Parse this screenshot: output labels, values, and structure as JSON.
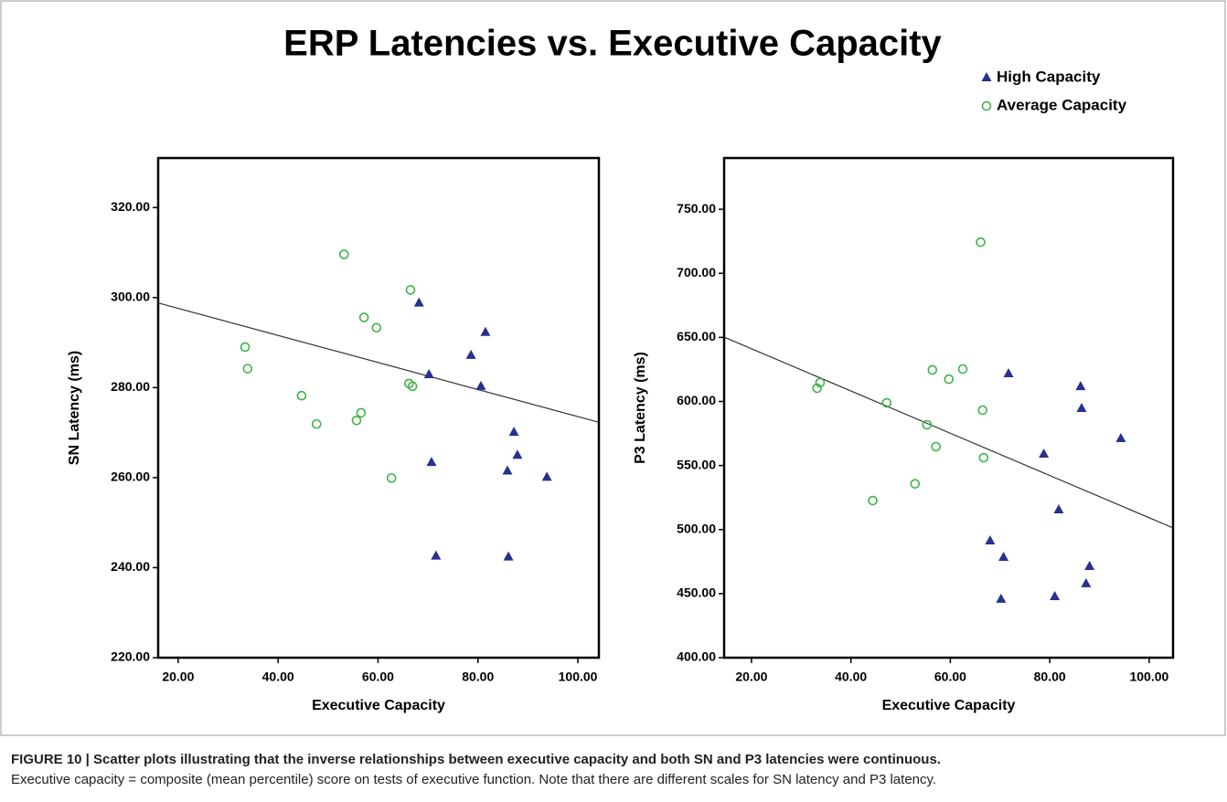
{
  "title": "ERP Latencies vs. Executive Capacity",
  "caption_title": "FIGURE 10 | Scatter plots illustrating that the inverse relationships between executive capacity and both SN and P3 latencies were continuous.",
  "caption_text": "Executive capacity = composite (mean percentile) score on tests of executive function. Note that there are different scales for SN latency and P3 latency.",
  "chart_data": [
    {
      "type": "scatter",
      "x_label": "Executive Capacity",
      "y_label": "SN Latency (ms)",
      "xlim": [
        16,
        104.2
      ],
      "ylim": [
        220,
        331
      ],
      "xticks": [
        {
          "value": 20,
          "label": "20.00"
        },
        {
          "value": 40,
          "label": "40.00"
        },
        {
          "value": 60,
          "label": "60.00"
        },
        {
          "value": 80,
          "label": "80.00"
        },
        {
          "value": 100,
          "label": "100.00"
        }
      ],
      "yticks": [
        {
          "value": 220,
          "label": "220.00"
        },
        {
          "value": 240,
          "label": "240.00"
        },
        {
          "value": 260,
          "label": "260.00"
        },
        {
          "value": 280,
          "label": "280.00"
        },
        {
          "value": 300,
          "label": "300.00"
        },
        {
          "value": 320,
          "label": "320.00"
        }
      ],
      "series": [
        {
          "name": "High Capacity",
          "color": "#27318f",
          "marker": "triangle",
          "x": [
            68.2,
            70.2,
            70.7,
            71.6,
            78.6,
            80.6,
            81.5,
            85.9,
            87.2,
            87.9,
            86.1,
            93.8
          ],
          "values": [
            298.8,
            282.9,
            263.4,
            242.6,
            287.2,
            280.3,
            292.3,
            261.5,
            270.1,
            265.0,
            242.4,
            260.1
          ]
        },
        {
          "name": "Average Capacity",
          "color": "#3db545",
          "marker": "circle",
          "x": [
            33.4,
            33.9,
            44.7,
            47.7,
            53.2,
            55.7,
            56.6,
            57.2,
            59.7,
            62.7,
            66.5,
            66.2,
            66.9
          ],
          "values": [
            289.0,
            284.2,
            278.2,
            271.9,
            309.6,
            272.7,
            274.4,
            295.6,
            293.3,
            259.9,
            301.7,
            280.9,
            280.3
          ]
        }
      ],
      "fit_line": {
        "x": [
          16,
          104.2
        ],
        "values": [
          298.8,
          272.3
        ],
        "color": "#333333"
      }
    },
    {
      "type": "scatter",
      "x_label": "Executive Capacity",
      "y_label": "P3 Latency (ms)",
      "xlim": [
        14.5,
        104.8
      ],
      "ylim": [
        400,
        790
      ],
      "xticks": [
        {
          "value": 20,
          "label": "20.00"
        },
        {
          "value": 40,
          "label": "40.00"
        },
        {
          "value": 60,
          "label": "60.00"
        },
        {
          "value": 80,
          "label": "80.00"
        },
        {
          "value": 100,
          "label": "100.00"
        }
      ],
      "yticks": [
        {
          "value": 400,
          "label": "400.00"
        },
        {
          "value": 450,
          "label": "450.00"
        },
        {
          "value": 500,
          "label": "500.00"
        },
        {
          "value": 550,
          "label": "550.00"
        },
        {
          "value": 600,
          "label": "600.00"
        },
        {
          "value": 650,
          "label": "650.00"
        },
        {
          "value": 700,
          "label": "700.00"
        },
        {
          "value": 750,
          "label": "750.00"
        }
      ],
      "series": [
        {
          "name": "High Capacity",
          "color": "#27318f",
          "marker": "triangle",
          "x": [
            71.7,
            68.0,
            70.7,
            70.2,
            78.8,
            81.8,
            81.0,
            86.2,
            86.4,
            87.3,
            88.0,
            94.3
          ],
          "values": [
            621.7,
            491.3,
            478.4,
            445.7,
            559.0,
            515.5,
            447.8,
            611.7,
            594.6,
            457.8,
            471.3,
            571.1
          ]
        },
        {
          "name": "Average Capacity",
          "color": "#3db545",
          "marker": "circle",
          "x": [
            33.2,
            33.8,
            47.2,
            44.4,
            52.9,
            55.3,
            56.4,
            57.1,
            59.7,
            62.5,
            66.1,
            66.5,
            66.7
          ],
          "values": [
            610.3,
            614.6,
            598.9,
            522.6,
            535.7,
            581.8,
            624.6,
            564.7,
            617.4,
            625.3,
            724.3,
            593.2,
            556.1
          ]
        }
      ],
      "fit_line": {
        "x": [
          14.5,
          104.8
        ],
        "values": [
          650.2,
          501.3
        ],
        "color": "#333333"
      }
    }
  ]
}
